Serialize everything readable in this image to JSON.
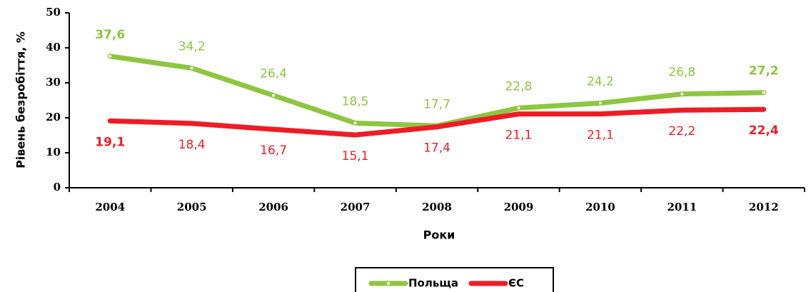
{
  "chart_data": {
    "type": "line",
    "y_label": "Рівень безробіття, %",
    "x_label": "Роки",
    "categories": [
      "2004",
      "2005",
      "2006",
      "2007",
      "2008",
      "2009",
      "2010",
      "2011",
      "2012"
    ],
    "series": [
      {
        "name": "Польща",
        "color": "#8dc63f",
        "values": [
          37.6,
          34.2,
          26.4,
          18.5,
          17.7,
          22.8,
          24.2,
          26.8,
          27.2
        ],
        "value_labels": [
          "37,6",
          "34,2",
          "26,4",
          "18,5",
          "17,7",
          "22,8",
          "24,2",
          "26,8",
          "27,2"
        ]
      },
      {
        "name": "ЄС",
        "color": "#ee1c24",
        "values": [
          19.1,
          18.4,
          16.7,
          15.1,
          17.4,
          21.1,
          21.1,
          22.2,
          22.4
        ],
        "value_labels": [
          "19,1",
          "18,4",
          "16,7",
          "15,1",
          "17,4",
          "21,1",
          "21,1",
          "22,2",
          "22,4"
        ]
      }
    ],
    "ylim": [
      0,
      50
    ],
    "yticks": [
      0,
      10,
      20,
      30,
      40,
      50
    ],
    "grid": false
  }
}
